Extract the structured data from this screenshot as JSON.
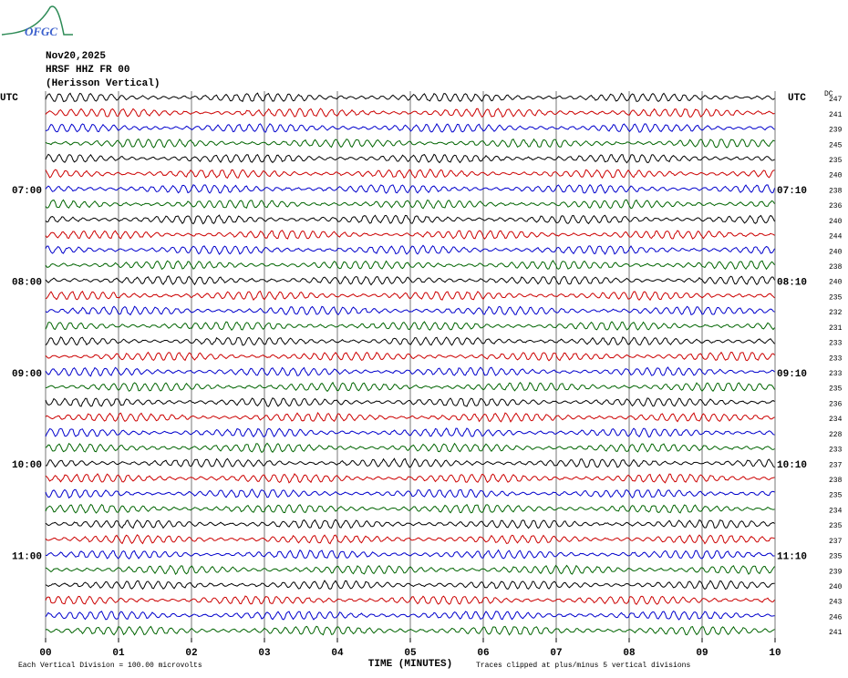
{
  "header": {
    "logo": "OFGC",
    "date": "Nov20,2025",
    "station": "HRSF HHZ FR 00",
    "location": "(Herisson Vertical)"
  },
  "chart_data": {
    "type": "helicorder",
    "left_title": "UTC",
    "right_title": "UTC",
    "dc_title": "DC",
    "colors": [
      "#000000",
      "#cc0000",
      "#0000cc",
      "#006400"
    ],
    "left_labels": [
      null,
      null,
      null,
      null,
      null,
      null,
      "07:00",
      null,
      null,
      null,
      null,
      null,
      "08:00",
      null,
      null,
      null,
      null,
      null,
      "09:00",
      null,
      null,
      null,
      null,
      null,
      "10:00",
      null,
      null,
      null,
      null,
      null,
      "11:00",
      null,
      null,
      null,
      null,
      null
    ],
    "right_labels": [
      null,
      null,
      null,
      null,
      null,
      null,
      "07:10",
      null,
      null,
      null,
      null,
      null,
      "08:10",
      null,
      null,
      null,
      null,
      null,
      "09:10",
      null,
      null,
      null,
      null,
      null,
      "10:10",
      null,
      null,
      null,
      null,
      null,
      "11:10",
      null,
      null,
      null,
      null,
      null
    ],
    "dc_values": [
      247,
      241,
      239,
      245,
      235,
      240,
      238,
      236,
      240,
      244,
      240,
      238,
      240,
      235,
      232,
      231,
      233,
      233,
      233,
      235,
      236,
      234,
      228,
      233,
      237,
      238,
      235,
      234,
      235,
      237,
      235,
      239,
      240,
      243,
      246,
      241
    ],
    "xlim": [
      0,
      10
    ],
    "xticks": [
      {
        "value": 0,
        "label": "00"
      },
      {
        "value": 1,
        "label": "01"
      },
      {
        "value": 2,
        "label": "02"
      },
      {
        "value": 3,
        "label": "03"
      },
      {
        "value": 4,
        "label": "04"
      },
      {
        "value": 5,
        "label": "05"
      },
      {
        "value": 6,
        "label": "06"
      },
      {
        "value": 7,
        "label": "07"
      },
      {
        "value": 8,
        "label": "08"
      },
      {
        "value": 9,
        "label": "09"
      },
      {
        "value": 10,
        "label": "10"
      }
    ],
    "x_label": "TIME (MINUTES)",
    "grid": true,
    "footnote_left": "Each Vertical Division =  100.00 microvolts",
    "footnote_right": "Traces clipped at plus/minus 5 vertical divisions"
  }
}
